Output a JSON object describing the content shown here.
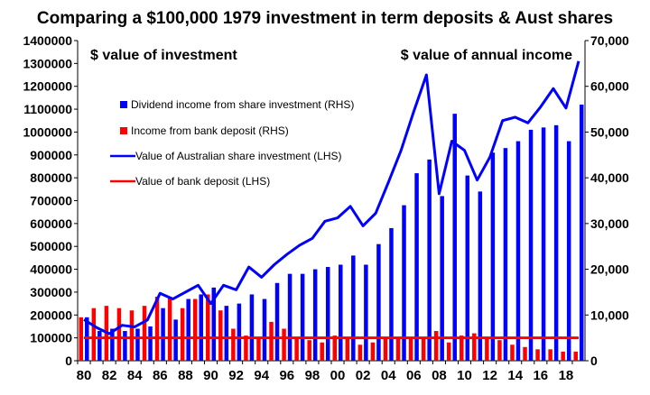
{
  "chart_data": {
    "type": "bar+line",
    "title": "Comparing a $100,000 1979 investment in term deposits & Aust shares",
    "annotations": {
      "left": "$ value of investment",
      "right": "$ value of annual income"
    },
    "x": [
      1980,
      1981,
      1982,
      1983,
      1984,
      1985,
      1986,
      1987,
      1988,
      1989,
      1990,
      1991,
      1992,
      1993,
      1994,
      1995,
      1996,
      1997,
      1998,
      1999,
      2000,
      2001,
      2002,
      2003,
      2004,
      2005,
      2006,
      2007,
      2008,
      2009,
      2010,
      2011,
      2012,
      2013,
      2014,
      2015,
      2016,
      2017,
      2018,
      2019
    ],
    "x_tick_labels": [
      "80",
      "82",
      "84",
      "86",
      "88",
      "90",
      "92",
      "94",
      "96",
      "98",
      "00",
      "02",
      "04",
      "06",
      "08",
      "10",
      "12",
      "14",
      "16",
      "18"
    ],
    "y_left": {
      "min": 0,
      "max": 1400000,
      "step": 100000,
      "tick_labels": [
        "0",
        "100000",
        "200000",
        "300000",
        "400000",
        "500000",
        "600000",
        "700000",
        "800000",
        "900000",
        "1000000",
        "1100000",
        "1200000",
        "1300000",
        "1400000"
      ]
    },
    "y_right": {
      "min": 0,
      "max": 70000,
      "step": 10000,
      "tick_labels": [
        "0",
        "10,000",
        "20,000",
        "30,000",
        "40,000",
        "50,000",
        "60,000",
        "70,000"
      ]
    },
    "series": [
      {
        "name": "Dividend income from share investment (RHS)",
        "type": "bar",
        "axis": "right",
        "color": "#0000ff",
        "values": [
          9500,
          6500,
          7000,
          6500,
          7000,
          7500,
          11500,
          9000,
          13500,
          14500,
          16000,
          12000,
          12500,
          14500,
          13500,
          17000,
          19000,
          19000,
          20000,
          20500,
          21000,
          23000,
          21000,
          25500,
          29000,
          34000,
          41000,
          44000,
          36000,
          54000,
          40500,
          37000,
          45500,
          46500,
          48000,
          50500,
          51000,
          51500,
          48000,
          56000
        ]
      },
      {
        "name": "Income from bank deposit (RHS)",
        "type": "bar",
        "axis": "right",
        "color": "#ff0000",
        "values": [
          9500,
          11500,
          12000,
          11500,
          11000,
          12000,
          14000,
          14000,
          11500,
          13500,
          14500,
          11000,
          7000,
          5500,
          5000,
          8500,
          7000,
          5000,
          4500,
          4000,
          5500,
          5000,
          3500,
          4000,
          5000,
          5000,
          5000,
          5000,
          6500,
          4000,
          5500,
          6000,
          5000,
          4500,
          3500,
          3000,
          2500,
          2500,
          2000,
          2000
        ]
      },
      {
        "name": "Value of Australian share investment (LHS)",
        "type": "line",
        "axis": "left",
        "color": "#0000ff",
        "values": [
          180000,
          145000,
          118000,
          155000,
          148000,
          178000,
          295000,
          270000,
          300000,
          330000,
          250000,
          330000,
          310000,
          410000,
          365000,
          420000,
          465000,
          505000,
          535000,
          610000,
          625000,
          675000,
          590000,
          645000,
          780000,
          920000,
          1090000,
          1250000,
          730000,
          960000,
          920000,
          790000,
          890000,
          1050000,
          1065000,
          1040000,
          1110000,
          1190000,
          1105000,
          1310000
        ]
      },
      {
        "name": "Value of bank deposit (LHS)",
        "type": "line",
        "axis": "left",
        "color": "#ff0000",
        "values": [
          100000,
          100000,
          100000,
          100000,
          100000,
          100000,
          100000,
          100000,
          100000,
          100000,
          100000,
          100000,
          100000,
          100000,
          100000,
          100000,
          100000,
          100000,
          100000,
          100000,
          100000,
          100000,
          100000,
          100000,
          100000,
          100000,
          100000,
          100000,
          100000,
          100000,
          100000,
          100000,
          100000,
          100000,
          100000,
          100000,
          100000,
          100000,
          100000,
          100000
        ]
      }
    ],
    "legend_placement": "upper-left-inside",
    "grid": false
  }
}
